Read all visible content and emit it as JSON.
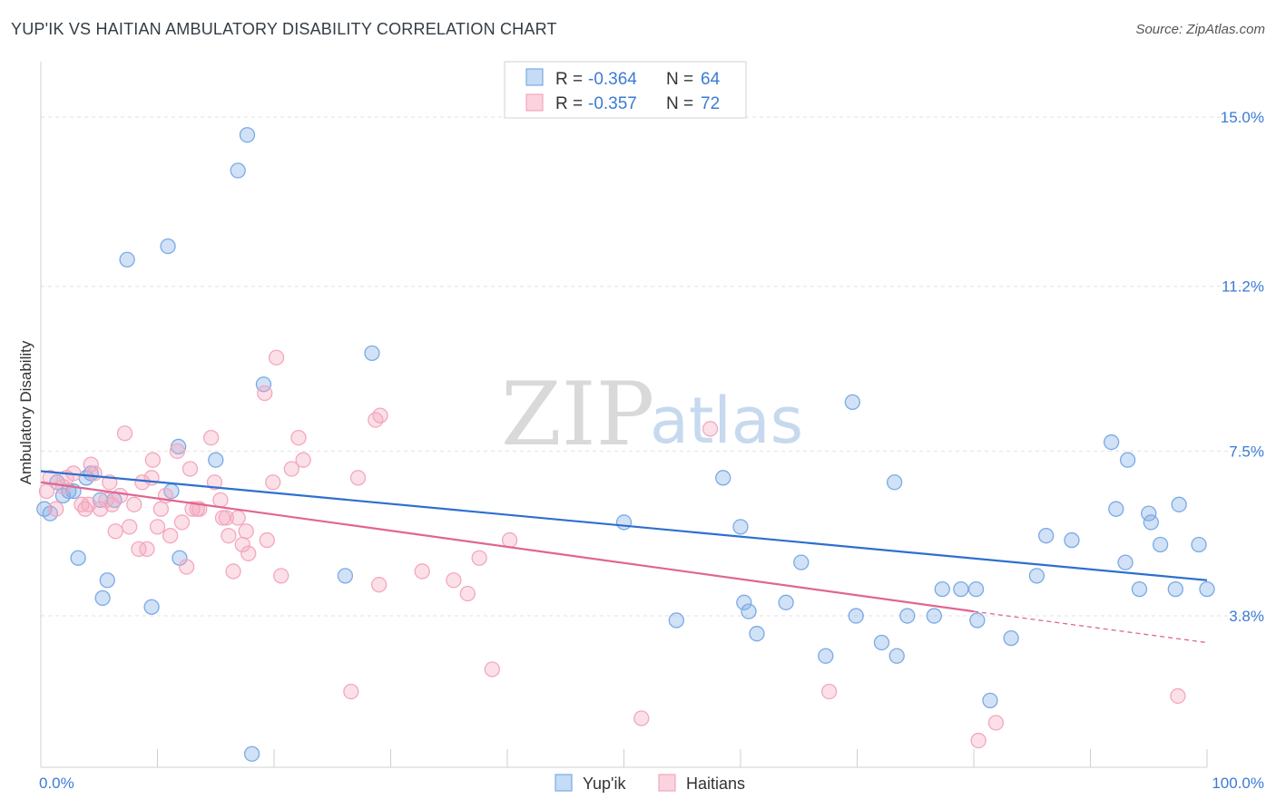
{
  "title": "YUP'IK VS HAITIAN AMBULATORY DISABILITY CORRELATION CHART",
  "source": "Source: ZipAtlas.com",
  "watermark": {
    "zip": "ZIP",
    "atlas": "atlas"
  },
  "chart_data": {
    "type": "scatter",
    "ylabel": "Ambulatory Disability",
    "xlim": [
      0,
      100
    ],
    "ylim": [
      0.4,
      16.0
    ],
    "y_ticks": [
      {
        "value": 3.8,
        "label": "3.8%"
      },
      {
        "value": 7.5,
        "label": "7.5%"
      },
      {
        "value": 11.2,
        "label": "11.2%"
      },
      {
        "value": 15.0,
        "label": "15.0%"
      }
    ],
    "x_tick_labels": {
      "left": "0.0%",
      "right": "100.0%"
    },
    "x_minor_ticks": [
      10,
      20,
      30,
      40,
      50,
      60,
      70,
      80,
      90
    ],
    "grid": true,
    "legend_position": "top-center",
    "series": [
      {
        "name": "Yup'ik",
        "color": "#7aaae6",
        "line_color": "#2e6fcf",
        "r_label": "R =",
        "r": "-0.364",
        "n_label": "N =",
        "n": "64",
        "trend": {
          "x0": 0,
          "y0": 7.05,
          "x1": 100,
          "y1": 4.6
        },
        "points": [
          [
            0.3,
            6.2
          ],
          [
            0.8,
            6.1
          ],
          [
            1.4,
            6.8
          ],
          [
            1.9,
            6.5
          ],
          [
            2.4,
            6.6
          ],
          [
            2.8,
            6.6
          ],
          [
            3.2,
            5.1
          ],
          [
            3.9,
            6.9
          ],
          [
            4.3,
            7.0
          ],
          [
            5.1,
            6.4
          ],
          [
            5.3,
            4.2
          ],
          [
            5.7,
            4.6
          ],
          [
            6.3,
            6.4
          ],
          [
            7.4,
            11.8
          ],
          [
            9.5,
            4.0
          ],
          [
            10.9,
            12.1
          ],
          [
            11.2,
            6.6
          ],
          [
            11.8,
            7.6
          ],
          [
            11.9,
            5.1
          ],
          [
            15.0,
            7.3
          ],
          [
            16.9,
            13.8
          ],
          [
            17.7,
            14.6
          ],
          [
            18.1,
            0.7
          ],
          [
            19.1,
            9.0
          ],
          [
            26.1,
            4.7
          ],
          [
            28.4,
            9.7
          ],
          [
            50.0,
            5.9
          ],
          [
            54.5,
            3.7
          ],
          [
            58.5,
            6.9
          ],
          [
            60.0,
            5.8
          ],
          [
            60.3,
            4.1
          ],
          [
            60.7,
            3.9
          ],
          [
            61.4,
            3.4
          ],
          [
            63.9,
            4.1
          ],
          [
            65.2,
            5.0
          ],
          [
            67.3,
            2.9
          ],
          [
            69.6,
            8.6
          ],
          [
            69.9,
            3.8
          ],
          [
            72.1,
            3.2
          ],
          [
            73.2,
            6.8
          ],
          [
            73.4,
            2.9
          ],
          [
            74.3,
            3.8
          ],
          [
            76.6,
            3.8
          ],
          [
            77.3,
            4.4
          ],
          [
            78.9,
            4.4
          ],
          [
            80.2,
            4.4
          ],
          [
            80.3,
            3.7
          ],
          [
            81.4,
            1.9
          ],
          [
            83.2,
            3.3
          ],
          [
            85.4,
            4.7
          ],
          [
            86.2,
            5.6
          ],
          [
            88.4,
            5.5
          ],
          [
            91.8,
            7.7
          ],
          [
            92.2,
            6.2
          ],
          [
            93.0,
            5.0
          ],
          [
            93.2,
            7.3
          ],
          [
            94.2,
            4.4
          ],
          [
            95.0,
            6.1
          ],
          [
            95.2,
            5.9
          ],
          [
            96.0,
            5.4
          ],
          [
            97.3,
            4.4
          ],
          [
            97.6,
            6.3
          ],
          [
            99.3,
            5.4
          ],
          [
            100.0,
            4.4
          ]
        ]
      },
      {
        "name": "Haitians",
        "color": "#f4a7be",
        "line_color": "#e0668f",
        "r_label": "R =",
        "r": "-0.357",
        "n_label": "N =",
        "n": "72",
        "trend": {
          "x0": 0,
          "y0": 6.8,
          "x1": 80,
          "y1": 3.9
        },
        "trend_dashed": {
          "x0": 80,
          "y0": 3.9,
          "x1": 100,
          "y1": 3.2
        },
        "points": [
          [
            0.5,
            6.6
          ],
          [
            0.8,
            6.9
          ],
          [
            1.3,
            6.2
          ],
          [
            1.9,
            6.7
          ],
          [
            2.2,
            6.9
          ],
          [
            2.8,
            7.0
          ],
          [
            3.5,
            6.3
          ],
          [
            3.8,
            6.2
          ],
          [
            4.1,
            6.3
          ],
          [
            4.3,
            7.2
          ],
          [
            4.6,
            7.0
          ],
          [
            5.1,
            6.2
          ],
          [
            5.6,
            6.4
          ],
          [
            5.9,
            6.8
          ],
          [
            6.1,
            6.3
          ],
          [
            6.4,
            5.7
          ],
          [
            6.8,
            6.5
          ],
          [
            7.2,
            7.9
          ],
          [
            7.6,
            5.8
          ],
          [
            8.0,
            6.3
          ],
          [
            8.4,
            5.3
          ],
          [
            8.7,
            6.8
          ],
          [
            9.1,
            5.3
          ],
          [
            9.5,
            6.9
          ],
          [
            9.6,
            7.3
          ],
          [
            10.0,
            5.8
          ],
          [
            10.3,
            6.2
          ],
          [
            10.7,
            6.5
          ],
          [
            11.1,
            5.6
          ],
          [
            11.7,
            7.5
          ],
          [
            12.1,
            5.9
          ],
          [
            12.5,
            4.9
          ],
          [
            12.8,
            7.1
          ],
          [
            13.0,
            6.2
          ],
          [
            13.4,
            6.2
          ],
          [
            13.6,
            6.2
          ],
          [
            14.6,
            7.8
          ],
          [
            14.9,
            6.8
          ],
          [
            15.4,
            6.4
          ],
          [
            15.6,
            6.0
          ],
          [
            15.9,
            6.0
          ],
          [
            16.1,
            5.6
          ],
          [
            16.5,
            4.8
          ],
          [
            16.9,
            6.0
          ],
          [
            17.3,
            5.4
          ],
          [
            17.6,
            5.7
          ],
          [
            17.8,
            5.2
          ],
          [
            19.2,
            8.8
          ],
          [
            19.4,
            5.5
          ],
          [
            19.9,
            6.8
          ],
          [
            20.2,
            9.6
          ],
          [
            20.6,
            4.7
          ],
          [
            21.5,
            7.1
          ],
          [
            22.1,
            7.8
          ],
          [
            22.5,
            7.3
          ],
          [
            26.6,
            2.1
          ],
          [
            27.2,
            6.9
          ],
          [
            28.7,
            8.2
          ],
          [
            29.0,
            4.5
          ],
          [
            29.1,
            8.3
          ],
          [
            32.7,
            4.8
          ],
          [
            35.4,
            4.6
          ],
          [
            36.6,
            4.3
          ],
          [
            37.6,
            5.1
          ],
          [
            38.7,
            2.6
          ],
          [
            40.2,
            5.5
          ],
          [
            51.5,
            1.5
          ],
          [
            57.4,
            8.0
          ],
          [
            67.6,
            2.1
          ],
          [
            80.4,
            1.0
          ],
          [
            81.9,
            1.4
          ],
          [
            97.5,
            2.0
          ]
        ]
      }
    ]
  }
}
